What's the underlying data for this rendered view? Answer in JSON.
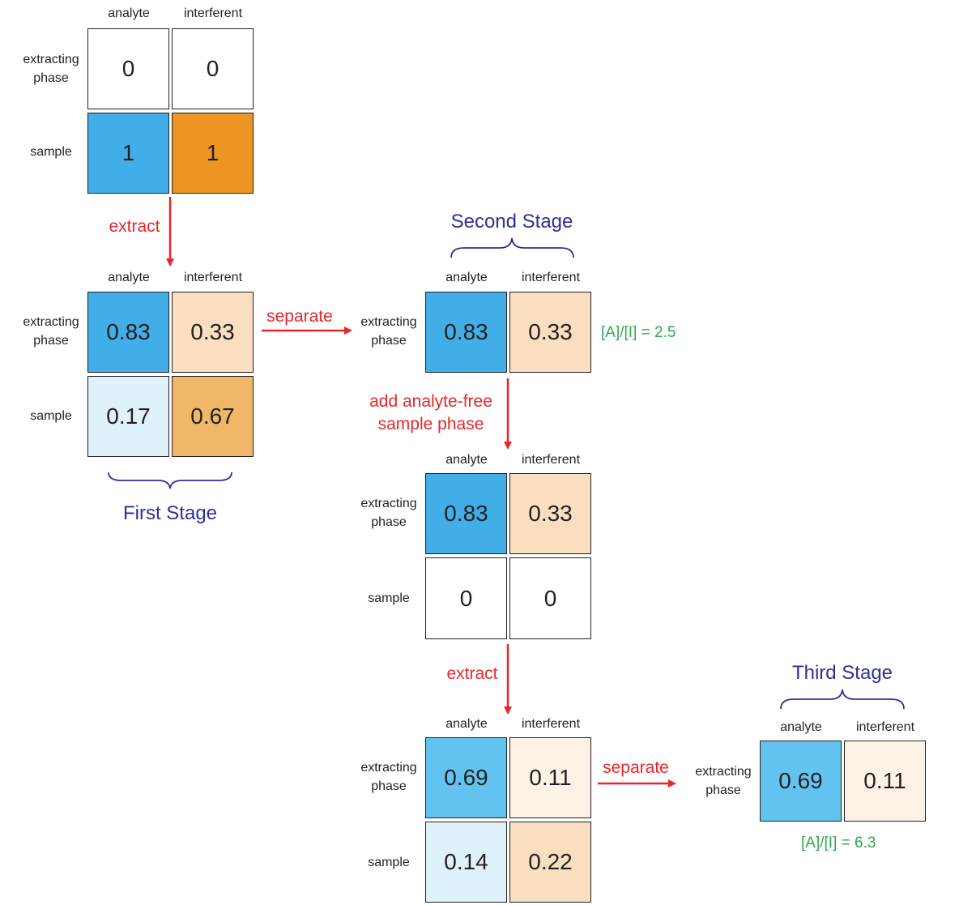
{
  "labels": {
    "analyte": "analyte",
    "interferent": "interferent",
    "extracting_phase": "extracting\nphase",
    "sample": "sample"
  },
  "colors": {
    "analyte_high": "#41aee8",
    "analyte_mid": "#63c3f0",
    "analyte_low": "#dff1fb",
    "interferent_high": "#ec9424",
    "interferent_mid": "#efb767",
    "interferent_light": "#f9dfbf",
    "interferent_pale": "#fdf2e6",
    "arrow": "#e8262b",
    "stage": "#2e3192",
    "ratio": "#2fa84f"
  },
  "initial": {
    "extracting": [
      "0",
      "0"
    ],
    "sample": [
      "1",
      "1"
    ]
  },
  "stage1": {
    "extracting": [
      "0.83",
      "0.33"
    ],
    "sample": [
      "0.17",
      "0.67"
    ],
    "title": "First Stage"
  },
  "stage2": {
    "title": "Second Stage",
    "extracting": [
      "0.83",
      "0.33"
    ],
    "ratio": "[A]/[I] = 2.5"
  },
  "stage2_added": {
    "extracting": [
      "0.83",
      "0.33"
    ],
    "sample": [
      "0",
      "0"
    ]
  },
  "stage2_extracted": {
    "extracting": [
      "0.69",
      "0.11"
    ],
    "sample": [
      "0.14",
      "0.22"
    ]
  },
  "stage3": {
    "title": "Third Stage",
    "extracting": [
      "0.69",
      "0.11"
    ],
    "ratio": "[A]/[I] = 6.3"
  },
  "steps": {
    "extract": "extract",
    "separate": "separate",
    "add_line1": "add analyte-free",
    "add_line2": "sample phase"
  }
}
